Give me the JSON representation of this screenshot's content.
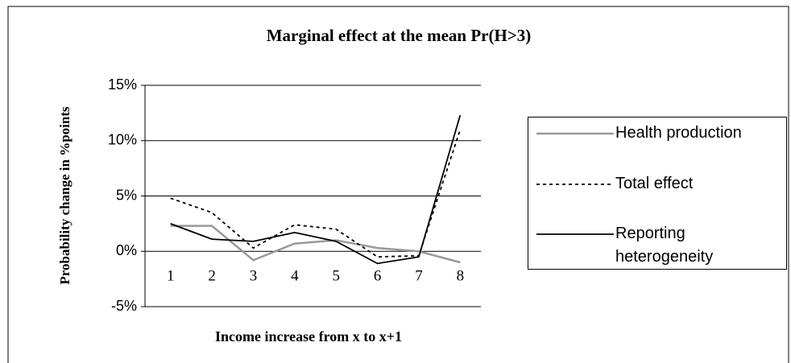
{
  "chart_data": {
    "type": "line",
    "title": "Marginal effect at the mean Pr(H>3)",
    "x_label": "Income increase from x to x+1",
    "y_label": "Probability change in %points",
    "categories": [
      "1",
      "2",
      "3",
      "4",
      "5",
      "6",
      "7",
      "8"
    ],
    "series": [
      {
        "name": "Health production",
        "color": "#999999",
        "dash": "solid",
        "values": [
          2.3,
          2.3,
          -0.8,
          0.7,
          1.0,
          0.3,
          0.0,
          -1.0
        ]
      },
      {
        "name": "Total effect",
        "color": "#000000",
        "dash": "dashed",
        "values": [
          4.8,
          3.5,
          0.3,
          2.4,
          2.0,
          -0.5,
          -0.4,
          11.0
        ]
      },
      {
        "name": "Reporting heterogeneity",
        "color": "#000000",
        "dash": "solid",
        "values": [
          2.5,
          1.1,
          0.9,
          1.7,
          0.9,
          -1.1,
          -0.5,
          12.3
        ]
      }
    ],
    "ylim": [
      -5,
      15
    ],
    "yticks": [
      {
        "value": -5,
        "label": "-5%"
      },
      {
        "value": 0,
        "label": "0%"
      },
      {
        "value": 5,
        "label": "5%"
      },
      {
        "value": 10,
        "label": "10%"
      },
      {
        "value": 15,
        "label": "15%"
      }
    ],
    "grid": true,
    "legend": "right"
  }
}
